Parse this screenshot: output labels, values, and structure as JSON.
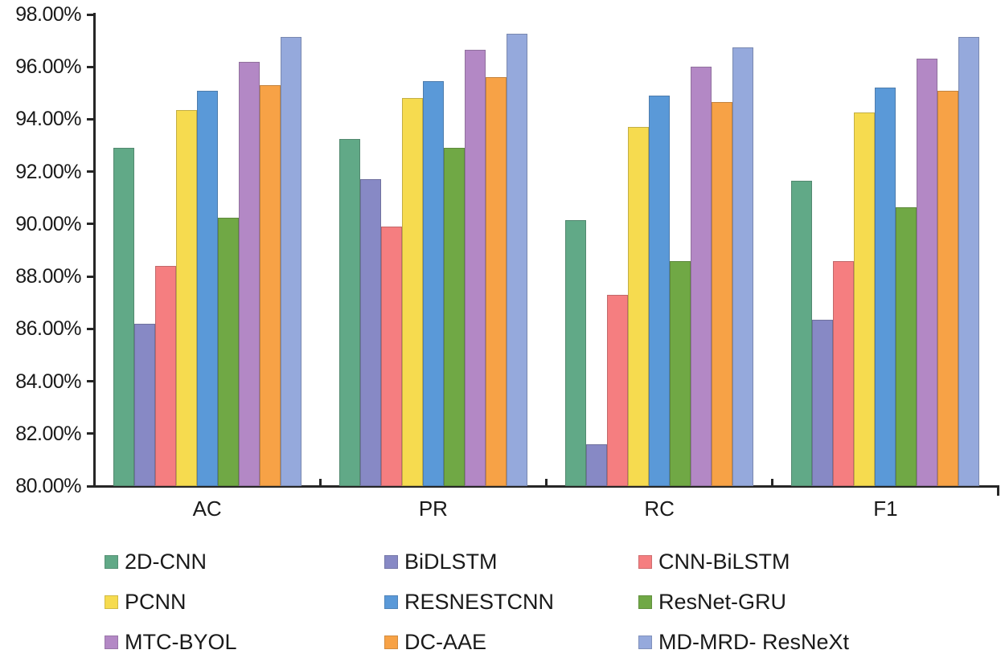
{
  "chart_data": {
    "type": "bar",
    "title": "",
    "xlabel": "",
    "ylabel": "",
    "categories": [
      "AC",
      "PR",
      "RC",
      "F1"
    ],
    "series": [
      {
        "name": "2D-CNN",
        "color": "#61A987",
        "values": [
          92.9,
          93.25,
          90.15,
          91.65
        ]
      },
      {
        "name": "BiDLSTM",
        "color": "#8789C5",
        "values": [
          86.2,
          91.7,
          81.6,
          86.35
        ]
      },
      {
        "name": "CNN-BiLSTM",
        "color": "#F57E80",
        "values": [
          88.4,
          89.9,
          87.3,
          88.6
        ]
      },
      {
        "name": "PCNN",
        "color": "#F6DB4F",
        "values": [
          94.35,
          94.8,
          93.7,
          94.25
        ]
      },
      {
        "name": "RESNESTCNN",
        "color": "#5A99D8",
        "values": [
          95.1,
          95.45,
          94.9,
          95.2
        ]
      },
      {
        "name": "ResNet-GRU",
        "color": "#70A845",
        "values": [
          90.25,
          92.9,
          88.6,
          90.65
        ]
      },
      {
        "name": "MTC-BYOL",
        "color": "#B388C5",
        "values": [
          96.2,
          96.65,
          96.0,
          96.3
        ]
      },
      {
        "name": "DC-AAE",
        "color": "#F7A246",
        "values": [
          95.3,
          95.6,
          94.65,
          95.1
        ]
      },
      {
        "name": "MD-MRD- ResNeXt",
        "color": "#95A9DC",
        "values": [
          97.15,
          97.25,
          96.75,
          97.15
        ]
      }
    ],
    "ylim": [
      80,
      98
    ],
    "ytick_step": 2,
    "yticks": [
      "98.00%",
      "96.00%",
      "94.00%",
      "92.00%",
      "90.00%",
      "88.00%",
      "86.00%",
      "84.00%",
      "82.00%",
      "80.00%"
    ],
    "grid": false,
    "legend_position": "bottom",
    "axis_color": "#262626",
    "background_color": "#FFFFFF"
  }
}
